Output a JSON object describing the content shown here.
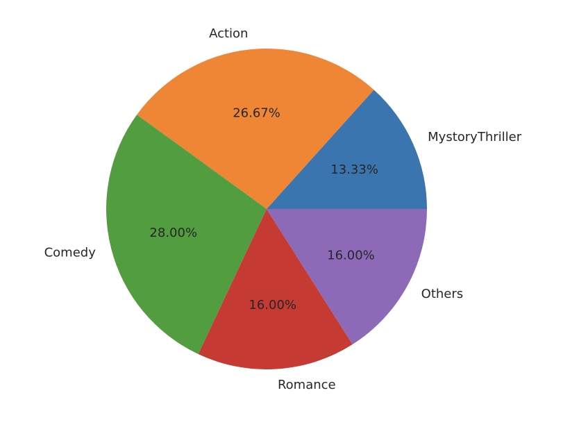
{
  "chart_data": {
    "type": "pie",
    "title": "",
    "start_angle_deg": 0,
    "direction": "counterclockwise",
    "slices": [
      {
        "label": "MystoryThriller",
        "value": 13.33,
        "pct_text": "13.33%",
        "color": "#3a75af"
      },
      {
        "label": "Action",
        "value": 26.67,
        "pct_text": "26.67%",
        "color": "#ee8636"
      },
      {
        "label": "Comedy",
        "value": 28.0,
        "pct_text": "28.00%",
        "color": "#529d3f"
      },
      {
        "label": "Romance",
        "value": 16.0,
        "pct_text": "16.00%",
        "color": "#c53a32"
      },
      {
        "label": "Others",
        "value": 16.0,
        "pct_text": "16.00%",
        "color": "#8d6ab8"
      }
    ]
  }
}
